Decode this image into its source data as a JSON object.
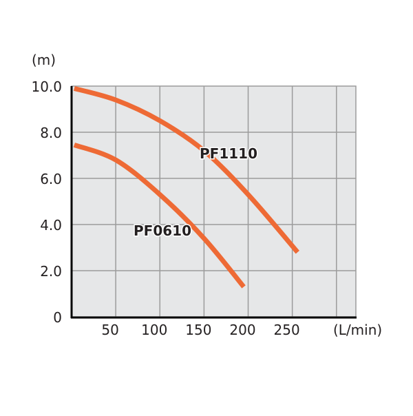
{
  "chart_data": {
    "type": "line",
    "title": "",
    "xlabel": "(L/min)",
    "ylabel": "(m)",
    "xlim": [
      0,
      322
    ],
    "ylim": [
      0,
      10
    ],
    "x_ticks": [
      50,
      100,
      150,
      200,
      250
    ],
    "x_tick_labels": [
      "50",
      "100",
      "150",
      "200",
      "250"
    ],
    "x_gridlines": [
      50,
      100,
      150,
      200,
      250,
      300
    ],
    "y_ticks": [
      0,
      2,
      4,
      6,
      8,
      10
    ],
    "y_tick_labels": [
      "0",
      "2.0",
      "4.0",
      "6.0",
      "8.0",
      "10.0"
    ],
    "grid": true,
    "colors": {
      "line": "#ee6a35",
      "plot_bg": "#e6e7e8",
      "grid": "#9b9b9b"
    },
    "series": [
      {
        "name": "PF1110",
        "x": [
          3,
          50,
          100,
          150,
          200,
          256
        ],
        "y": [
          9.9,
          9.4,
          8.5,
          7.2,
          5.3,
          2.8
        ]
      },
      {
        "name": "PF0610",
        "x": [
          3,
          50,
          100,
          150,
          195
        ],
        "y": [
          7.45,
          6.8,
          5.3,
          3.4,
          1.3
        ]
      }
    ]
  }
}
